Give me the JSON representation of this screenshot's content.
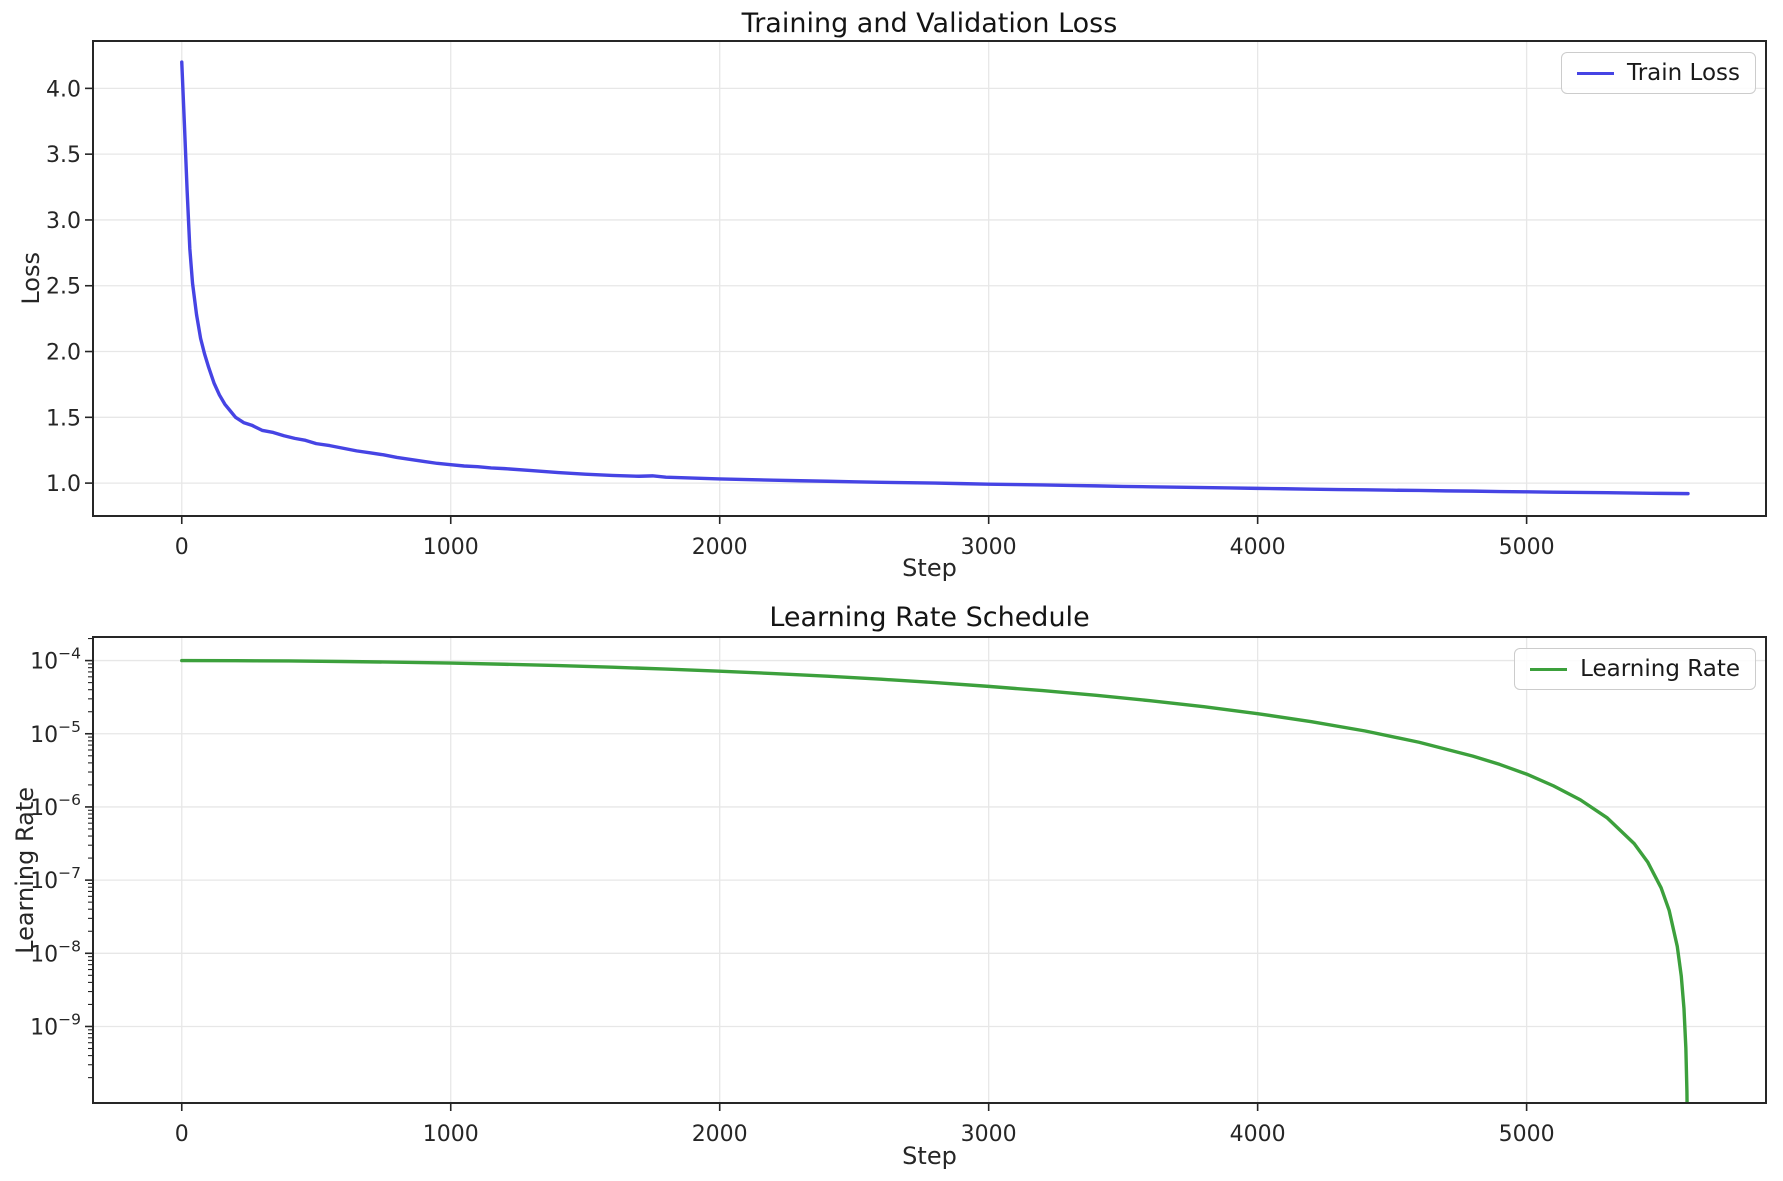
{
  "figure": {
    "background": "#ffffff",
    "frame_color": "#262626",
    "grid_color": "#e7e7e7",
    "tick_label_color": "#262626"
  },
  "chart_data": [
    {
      "type": "line",
      "title": "Training and Validation Loss",
      "xlabel": "Step",
      "ylabel": "Loss",
      "yscale": "linear",
      "xlim": [
        -330,
        5890
      ],
      "ylim": [
        0.75,
        4.36
      ],
      "grid": true,
      "xticks": [
        0,
        1000,
        2000,
        3000,
        4000,
        5000
      ],
      "xtick_labels": [
        "0",
        "1000",
        "2000",
        "3000",
        "4000",
        "5000"
      ],
      "yticks": [
        1.0,
        1.5,
        2.0,
        2.5,
        3.0,
        3.5,
        4.0
      ],
      "ytick_labels": [
        "1.0",
        "1.5",
        "2.0",
        "2.5",
        "3.0",
        "3.5",
        "4.0"
      ],
      "legend": {
        "position": "upper-right"
      },
      "series": [
        {
          "name": "Train Loss",
          "color": "#4644e4",
          "linewidth": 3.4,
          "x": [
            0,
            10,
            20,
            30,
            40,
            55,
            70,
            85,
            100,
            120,
            140,
            160,
            180,
            200,
            230,
            260,
            300,
            340,
            380,
            420,
            460,
            500,
            550,
            600,
            650,
            700,
            750,
            800,
            850,
            900,
            950,
            1000,
            1050,
            1100,
            1150,
            1200,
            1300,
            1400,
            1500,
            1600,
            1700,
            1750,
            1800,
            1900,
            2000,
            2100,
            2200,
            2300,
            2400,
            2500,
            2600,
            2700,
            2800,
            2900,
            3000,
            3100,
            3200,
            3300,
            3400,
            3500,
            3600,
            3700,
            3800,
            3900,
            4000,
            4100,
            4200,
            4300,
            4400,
            4500,
            4600,
            4700,
            4800,
            4900,
            5000,
            5100,
            5200,
            5300,
            5400,
            5500,
            5600
          ],
          "y": [
            4.2,
            3.72,
            3.22,
            2.78,
            2.52,
            2.28,
            2.1,
            1.98,
            1.88,
            1.76,
            1.67,
            1.6,
            1.55,
            1.5,
            1.46,
            1.44,
            1.4,
            1.385,
            1.36,
            1.34,
            1.325,
            1.3,
            1.285,
            1.265,
            1.245,
            1.23,
            1.215,
            1.195,
            1.18,
            1.165,
            1.15,
            1.14,
            1.13,
            1.125,
            1.115,
            1.11,
            1.095,
            1.08,
            1.068,
            1.058,
            1.052,
            1.055,
            1.045,
            1.038,
            1.032,
            1.027,
            1.022,
            1.018,
            1.014,
            1.01,
            1.006,
            1.003,
            1.0,
            0.996,
            0.992,
            0.989,
            0.986,
            0.982,
            0.979,
            0.975,
            0.972,
            0.969,
            0.966,
            0.963,
            0.96,
            0.957,
            0.954,
            0.951,
            0.949,
            0.946,
            0.944,
            0.941,
            0.939,
            0.936,
            0.934,
            0.931,
            0.929,
            0.927,
            0.924,
            0.922,
            0.92
          ]
        }
      ]
    },
    {
      "type": "line",
      "title": "Learning Rate Schedule",
      "xlabel": "Step",
      "ylabel": "Learning Rate",
      "yscale": "log",
      "xlim": [
        -330,
        5890
      ],
      "ylim": [
        9e-11,
        0.00021
      ],
      "grid": true,
      "xticks": [
        0,
        1000,
        2000,
        3000,
        4000,
        5000
      ],
      "xtick_labels": [
        "0",
        "1000",
        "2000",
        "3000",
        "4000",
        "5000"
      ],
      "ytick_exponents": [
        -4,
        -5,
        -6,
        -7,
        -8,
        -9
      ],
      "legend": {
        "position": "upper-right"
      },
      "series": [
        {
          "name": "Learning Rate",
          "color": "#3ca03c",
          "linewidth": 3.4,
          "x": [
            0,
            200,
            400,
            600,
            800,
            1000,
            1200,
            1400,
            1600,
            1800,
            2000,
            2200,
            2400,
            2600,
            2800,
            3000,
            3200,
            3400,
            3600,
            3800,
            4000,
            4200,
            4400,
            4600,
            4800,
            4900,
            5000,
            5100,
            5200,
            5300,
            5400,
            5450,
            5500,
            5530,
            5560,
            5575,
            5585,
            5592,
            5596,
            5598
          ],
          "y": [
            0.0001,
            9.969e-05,
            9.875e-05,
            9.719e-05,
            9.505e-05,
            9.234e-05,
            8.909e-05,
            8.536e-05,
            8.117e-05,
            7.66e-05,
            7.169e-05,
            6.651e-05,
            6.113e-05,
            5.56e-05,
            5e-05,
            4.44e-05,
            3.887e-05,
            3.349e-05,
            2.831e-05,
            2.34e-05,
            1.883e-05,
            1.464e-05,
            1.091e-05,
            7.66e-06,
            4.95e-06,
            3.81e-06,
            2.81e-06,
            1.94e-06,
            1.25e-06,
            7.07e-07,
            3.15e-07,
            1.77e-07,
            7.85e-08,
            3.85e-08,
            1.25e-08,
            4.9e-09,
            1.77e-09,
            5.1e-10,
            1.3e-10,
            3.2e-11
          ]
        }
      ]
    }
  ]
}
